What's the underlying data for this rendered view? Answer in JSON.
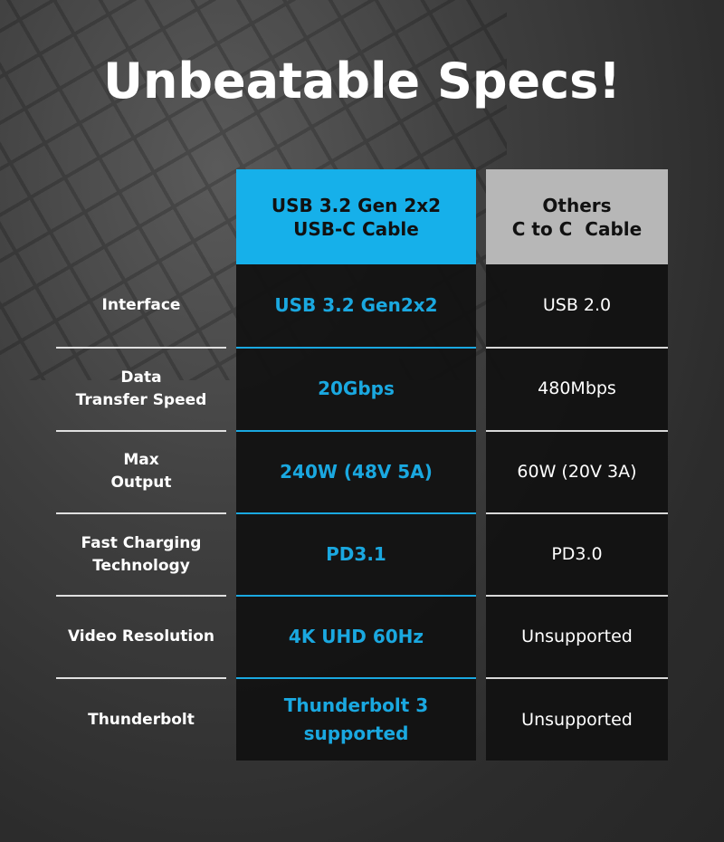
{
  "title": "Unbeatable Specs!",
  "columns": [
    {
      "header_line1": "USB 3.2 Gen 2x2",
      "header_line2": "USB-C Cable",
      "values": [
        "USB 3.2 Gen2x2",
        "20Gbps",
        "240W (48V 5A)",
        "PD3.1",
        "4K UHD 60Hz",
        "Thunderbolt 3\nsupported"
      ]
    },
    {
      "header_line1": "Others",
      "header_line2": "C to C  Cable",
      "values": [
        "USB 2.0",
        "480Mbps",
        "60W (20V 3A)",
        "PD3.0",
        "Unsupported",
        "Unsupported"
      ]
    }
  ],
  "rows": [
    "Interface",
    "Data\nTransfer Speed",
    "Max\nOutput",
    "Fast Charging\nTechnology",
    "Video Resolution",
    "Thunderbolt"
  ],
  "colors": {
    "accent": "#16b0ea",
    "others_header": "#b7b7b7",
    "cell_bg": "#121212"
  }
}
